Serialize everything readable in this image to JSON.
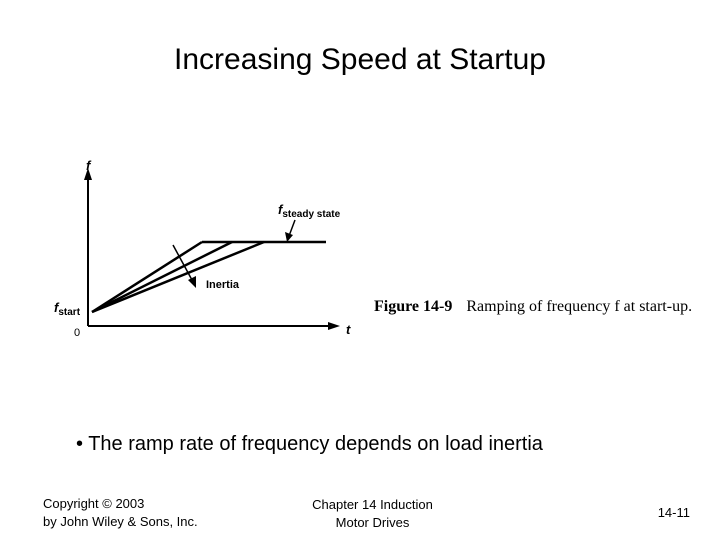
{
  "slide": {
    "title": "Increasing Speed at Startup",
    "bullet": "• The ramp rate of frequency depends on load inertia"
  },
  "figure": {
    "axis_y_label": "f",
    "axis_x_label": "t",
    "origin_label": "0",
    "f_start_label": "f",
    "f_start_sub": "start",
    "f_steady_label": "f",
    "f_steady_sub": "steady state",
    "inertia_label": "Inertia",
    "caption_number": "Figure 14-9",
    "caption_text": "Ramping of frequency f at start-up."
  },
  "footer": {
    "copyright_line1": "Copyright © 2003",
    "copyright_line2": "by John Wiley & Sons, Inc.",
    "chapter_line1": "Chapter 14 Induction",
    "chapter_line2": "Motor Drives",
    "page_number": "14-11"
  }
}
